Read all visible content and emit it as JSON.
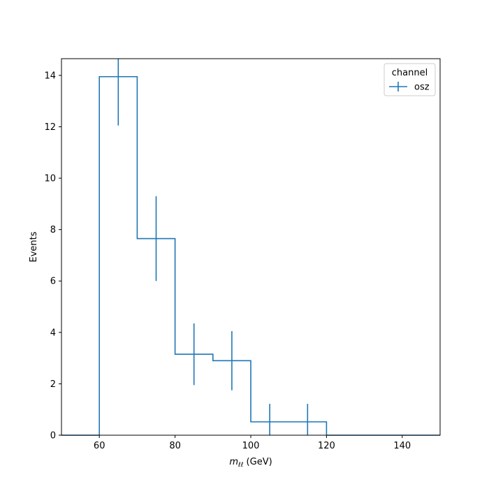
{
  "chart_data": {
    "type": "histogram",
    "bin_edges": [
      50,
      60,
      70,
      80,
      90,
      100,
      110,
      120,
      130,
      140,
      150
    ],
    "values": [
      0,
      13.95,
      7.65,
      3.15,
      2.9,
      0.52,
      0.52,
      0,
      0,
      0
    ],
    "errors": [
      0,
      1.9,
      1.65,
      1.2,
      1.15,
      0.7,
      0.7,
      0,
      0,
      0
    ],
    "series": [
      {
        "name": "osz",
        "color": "#1f77b4"
      }
    ],
    "xlabel_main": "m",
    "xlabel_sub": "ℓℓ",
    "xlabel_unit": " (GeV)",
    "ylabel": "Events",
    "xlim": [
      50,
      150
    ],
    "ylim": [
      0,
      14.65
    ],
    "xticks": [
      60,
      80,
      100,
      120,
      140
    ],
    "yticks": [
      0,
      2,
      4,
      6,
      8,
      10,
      12,
      14
    ],
    "legend": {
      "title": "channel",
      "placement": "top-right"
    },
    "grid": false
  }
}
